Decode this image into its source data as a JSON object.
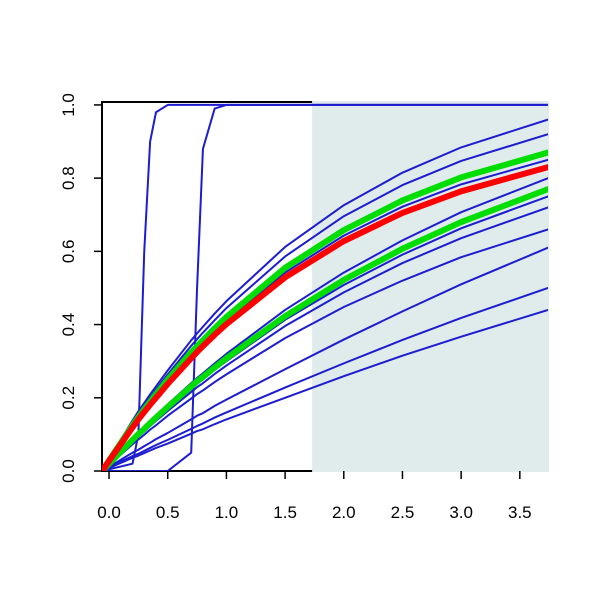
{
  "chart_data": {
    "type": "line",
    "x": [
      -0.06,
      0.2,
      0.25,
      0.3,
      0.35,
      0.4,
      0.5,
      0.7,
      0.75,
      0.8,
      0.9,
      1.0,
      1.5,
      2.0,
      2.5,
      3.0,
      3.74
    ],
    "xlim": [
      -0.06,
      3.74
    ],
    "ylim": [
      0,
      1.008
    ],
    "xticks": [
      {
        "value": 0,
        "label": "0.0"
      },
      {
        "value": 0.5,
        "label": "0.5"
      },
      {
        "value": 1,
        "label": "1.0"
      },
      {
        "value": 1.5,
        "label": "1.5"
      },
      {
        "value": 2,
        "label": "2.0"
      },
      {
        "value": 2.5,
        "label": "2.5"
      },
      {
        "value": 3,
        "label": "3.0"
      },
      {
        "value": 3.5,
        "label": "3.5"
      }
    ],
    "yticks": [
      {
        "value": 0,
        "label": "0.0"
      },
      {
        "value": 0.2,
        "label": "0.2"
      },
      {
        "value": 0.4,
        "label": "0.4"
      },
      {
        "value": 0.6,
        "label": "0.6"
      },
      {
        "value": 0.8,
        "label": "0.8"
      },
      {
        "value": 1,
        "label": "1.0"
      }
    ],
    "shaded_region": [
      1.73,
      3.74
    ],
    "shade_color": "#e0ecec",
    "series": [
      {
        "color": "#1c1cd0",
        "width": 2,
        "values": [
          0,
          0.02,
          0.1,
          0.6,
          0.9,
          0.98,
          1,
          1,
          1,
          1,
          1,
          1,
          1,
          1,
          1,
          1,
          1
        ]
      },
      {
        "color": "#1c1cd0",
        "width": 2,
        "values": [
          0,
          0,
          0,
          0,
          0,
          0,
          0,
          0.05,
          0.5,
          0.88,
          0.99,
          1,
          1,
          1,
          1,
          1,
          1
        ]
      },
      {
        "color": "#1c1cd0",
        "width": 2,
        "values": [
          0,
          0.138,
          0.163,
          0.186,
          0.209,
          0.231,
          0.275,
          0.357,
          0.376,
          0.394,
          0.43,
          0.464,
          0.612,
          0.726,
          0.815,
          0.884,
          0.96
        ]
      },
      {
        "color": "#1c1cd0",
        "width": 2,
        "values": [
          0,
          0.132,
          0.156,
          0.179,
          0.2,
          0.222,
          0.264,
          0.342,
          0.36,
          0.378,
          0.412,
          0.445,
          0.586,
          0.696,
          0.781,
          0.847,
          0.92
        ]
      },
      {
        "color": "#1c1cd0",
        "width": 2,
        "values": [
          0,
          0.122,
          0.144,
          0.165,
          0.185,
          0.205,
          0.244,
          0.316,
          0.333,
          0.349,
          0.381,
          0.411,
          0.542,
          0.643,
          0.722,
          0.783,
          0.85
        ]
      },
      {
        "color": "#1c1cd0",
        "width": 2,
        "values": [
          0,
          0.088,
          0.105,
          0.12,
          0.136,
          0.152,
          0.182,
          0.24,
          0.254,
          0.267,
          0.294,
          0.32,
          0.44,
          0.542,
          0.63,
          0.707,
          0.8
        ]
      },
      {
        "color": "#1c1cd0",
        "width": 2,
        "values": [
          0,
          0.083,
          0.098,
          0.113,
          0.128,
          0.142,
          0.171,
          0.225,
          0.238,
          0.25,
          0.276,
          0.3,
          0.413,
          0.508,
          0.591,
          0.663,
          0.75
        ]
      },
      {
        "color": "#1c1cd0",
        "width": 2,
        "values": [
          0,
          0.079,
          0.094,
          0.108,
          0.123,
          0.137,
          0.164,
          0.216,
          0.229,
          0.24,
          0.265,
          0.288,
          0.396,
          0.488,
          0.568,
          0.636,
          0.72
        ]
      },
      {
        "color": "#1c1cd0",
        "width": 2,
        "values": [
          0,
          0.073,
          0.086,
          0.099,
          0.113,
          0.125,
          0.151,
          0.198,
          0.21,
          0.22,
          0.243,
          0.264,
          0.363,
          0.448,
          0.52,
          0.584,
          0.66
        ]
      },
      {
        "color": "#1c1cd0",
        "width": 2,
        "values": [
          0,
          0.05,
          0.058,
          0.068,
          0.077,
          0.087,
          0.104,
          0.141,
          0.151,
          0.158,
          0.178,
          0.195,
          0.278,
          0.359,
          0.436,
          0.51,
          0.61
        ]
      },
      {
        "color": "#1c1cd0",
        "width": 2,
        "values": [
          0,
          0.041,
          0.047,
          0.055,
          0.063,
          0.071,
          0.085,
          0.115,
          0.123,
          0.13,
          0.146,
          0.16,
          0.228,
          0.294,
          0.358,
          0.418,
          0.5
        ]
      },
      {
        "color": "#1c1cd0",
        "width": 2,
        "values": [
          0,
          0.036,
          0.042,
          0.049,
          0.056,
          0.063,
          0.075,
          0.102,
          0.109,
          0.114,
          0.128,
          0.141,
          0.2,
          0.259,
          0.315,
          0.367,
          0.44
        ]
      },
      {
        "color": "#00dd00",
        "width": 6,
        "values": [
          0,
          0.125,
          0.147,
          0.169,
          0.189,
          0.21,
          0.25,
          0.324,
          0.341,
          0.357,
          0.39,
          0.421,
          0.555,
          0.658,
          0.739,
          0.802,
          0.87
        ]
      },
      {
        "color": "#00dd00",
        "width": 6,
        "values": [
          0,
          0.085,
          0.101,
          0.115,
          0.131,
          0.146,
          0.175,
          0.231,
          0.245,
          0.257,
          0.283,
          0.308,
          0.423,
          0.522,
          0.607,
          0.68,
          0.77
        ]
      },
      {
        "color": "#ff0000",
        "width": 6,
        "values": [
          0,
          0.119,
          0.141,
          0.161,
          0.181,
          0.2,
          0.238,
          0.308,
          0.325,
          0.341,
          0.372,
          0.401,
          0.529,
          0.628,
          0.705,
          0.764,
          0.83
        ]
      }
    ]
  }
}
